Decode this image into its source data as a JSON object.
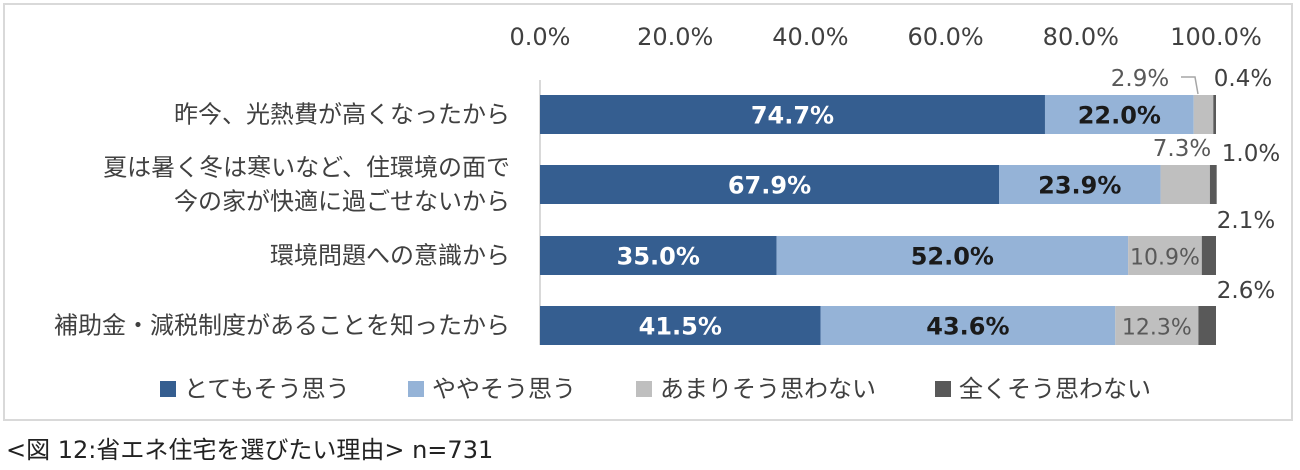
{
  "chart_data": {
    "type": "bar",
    "orientation": "horizontal",
    "stacked": true,
    "xlim": [
      0,
      100
    ],
    "x_ticks": [
      "0.0%",
      "20.0%",
      "40.0%",
      "60.0%",
      "80.0%",
      "100.0%"
    ],
    "x_tick_values": [
      0,
      20,
      40,
      60,
      80,
      100
    ],
    "categories": [
      [
        "昨今、光熱費が高くなったから"
      ],
      [
        "夏は暑く冬は寒いなど、住環境の面で",
        "今の家が快適に過ごせないから"
      ],
      [
        "環境問題への意識から"
      ],
      [
        "補助金・減税制度があることを知ったから"
      ]
    ],
    "series": [
      {
        "name": "とてもそう思う",
        "color": "#355e90",
        "values": [
          74.7,
          67.9,
          35.0,
          41.5
        ],
        "labels": [
          "74.7%",
          "67.9%",
          "35.0%",
          "41.5%"
        ]
      },
      {
        "name": "ややそう思う",
        "color": "#95b3d7",
        "values": [
          22.0,
          23.9,
          52.0,
          43.6
        ],
        "labels": [
          "22.0%",
          "23.9%",
          "52.0%",
          "43.6%"
        ]
      },
      {
        "name": "あまりそう思わない",
        "color": "#bfbfbf",
        "values": [
          2.9,
          7.3,
          10.9,
          12.3
        ],
        "labels": [
          "2.9%",
          "7.3%",
          "10.9%",
          "12.3%"
        ]
      },
      {
        "name": "全くそう思わない",
        "color": "#595959",
        "values": [
          0.4,
          1.0,
          2.1,
          2.6
        ],
        "labels": [
          "0.4%",
          "1.0%",
          "2.1%",
          "2.6%"
        ]
      }
    ],
    "legend_position": "bottom",
    "grid": false
  },
  "caption": "<図 12:省エネ住宅を選びたい理由> n=731"
}
